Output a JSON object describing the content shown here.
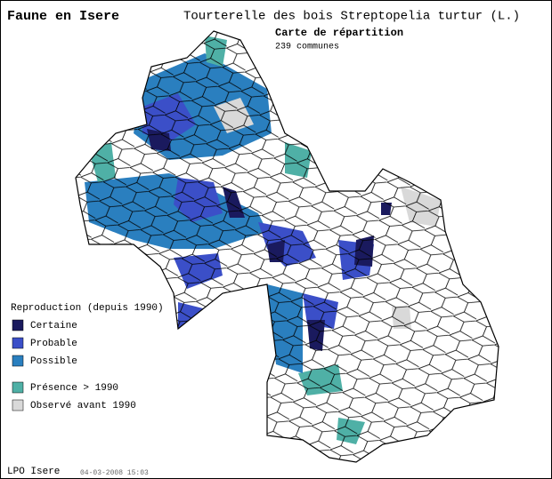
{
  "header": {
    "site": "Faune en Isere",
    "species": "Tourterelle des bois  Streptopelia turtur (L.)",
    "map_title": "Carte de répartition",
    "count": "239 communes"
  },
  "legend": {
    "title": "Reproduction (depuis 1990)",
    "items": [
      {
        "label": "Certaine",
        "color": "#1a1a5e"
      },
      {
        "label": "Probable",
        "color": "#3b4fc8"
      },
      {
        "label": "Possible",
        "color": "#2a7fbf"
      },
      {
        "label": "Présence > 1990",
        "color": "#4fb0a6"
      },
      {
        "label": "Observé avant 1990",
        "color": "#d9d9d9"
      }
    ]
  },
  "footer": {
    "source": "LPO Isere",
    "date": "04-03-2008 15:03"
  }
}
